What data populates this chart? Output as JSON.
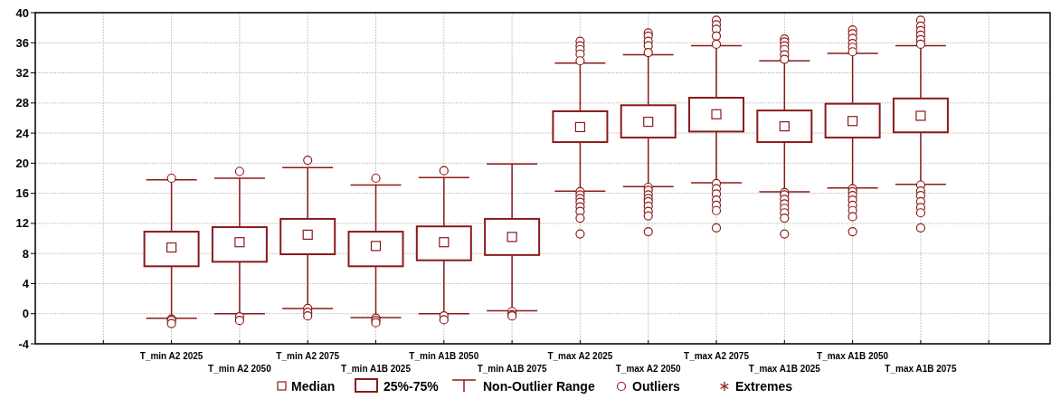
{
  "chart_data": {
    "type": "box",
    "categories": [
      null,
      "T_min  A2 2025",
      "T_min  A2 2050",
      "T_min  A2 2075",
      "T_min  A1B 2025",
      "T_min  A1B 2050",
      "T_min  A1B 2075",
      "T_max  A2 2025",
      "T_max  A2 2050",
      "T_max  A2 2075",
      "T_max  A1B 2025",
      "T_max  A1B 2050",
      "T_max  A1B 2075",
      null
    ],
    "color": "#8b1a1a",
    "boxes": [
      null,
      {
        "low": -0.6,
        "q1": 6.3,
        "median": 8.8,
        "q3": 10.9,
        "high": 17.8,
        "outliers": [
          18.0,
          -0.7,
          -0.9,
          -1.3
        ]
      },
      {
        "low": 0,
        "q1": 6.9,
        "median": 9.5,
        "q3": 11.5,
        "high": 18.0,
        "outliers": [
          18.9,
          -0.4,
          -0.9
        ]
      },
      {
        "low": 0.7,
        "q1": 7.9,
        "median": 10.5,
        "q3": 12.6,
        "high": 19.4,
        "outliers": [
          20.4,
          0.7,
          0.2,
          -0.3
        ]
      },
      {
        "low": -0.5,
        "q1": 6.3,
        "median": 9.0,
        "q3": 10.9,
        "high": 17.1,
        "outliers": [
          18.0,
          -0.6,
          -0.9,
          -1.2
        ]
      },
      {
        "low": 0,
        "q1": 7.1,
        "median": 9.5,
        "q3": 11.6,
        "high": 18.1,
        "outliers": [
          19.0,
          -0.3,
          -0.8
        ]
      },
      {
        "low": 0.4,
        "q1": 7.8,
        "median": 10.2,
        "q3": 12.6,
        "high": 19.9,
        "outliers": [
          0.3,
          -0.1,
          -0.3
        ]
      },
      {
        "low": 16.3,
        "q1": 22.8,
        "median": 24.8,
        "q3": 26.9,
        "high": 33.3,
        "outliers": [
          36.2,
          35.6,
          35.1,
          34.5,
          33.6,
          16.2,
          15.8,
          15.3,
          14.8,
          14.2,
          13.6,
          12.7,
          10.6
        ]
      },
      {
        "low": 16.9,
        "q1": 23.4,
        "median": 25.5,
        "q3": 27.7,
        "high": 34.4,
        "outliers": [
          37.3,
          36.9,
          36.2,
          35.6,
          34.7,
          16.8,
          16.4,
          15.8,
          15.3,
          14.9,
          14.3,
          13.6,
          13.0,
          10.9
        ]
      },
      {
        "low": 17.4,
        "q1": 24.2,
        "median": 26.5,
        "q3": 28.7,
        "high": 35.6,
        "outliers": [
          39.0,
          38.4,
          37.8,
          36.9,
          35.8,
          17.3,
          16.6,
          15.9,
          15.1,
          14.4,
          13.7,
          11.4
        ]
      },
      {
        "low": 16.2,
        "q1": 22.8,
        "median": 24.9,
        "q3": 27.0,
        "high": 33.6,
        "outliers": [
          36.5,
          36.1,
          35.6,
          35.1,
          34.4,
          33.8,
          16.1,
          15.8,
          15.2,
          14.6,
          14.0,
          13.4,
          12.7,
          10.6
        ]
      },
      {
        "low": 16.7,
        "q1": 23.4,
        "median": 25.6,
        "q3": 27.9,
        "high": 34.6,
        "outliers": [
          37.7,
          37.2,
          36.6,
          35.9,
          35.4,
          34.8,
          16.6,
          16.2,
          15.7,
          15.1,
          14.4,
          13.7,
          12.9,
          10.9
        ]
      },
      {
        "low": 17.2,
        "q1": 24.1,
        "median": 26.3,
        "q3": 28.6,
        "high": 35.6,
        "outliers": [
          39.0,
          38.2,
          37.6,
          37.0,
          36.4,
          35.8,
          17.1,
          16.3,
          15.7,
          14.9,
          14.1,
          13.4,
          11.4
        ]
      },
      null
    ],
    "ylim": [
      -4,
      40
    ],
    "yticks": [
      -4,
      0,
      4,
      8,
      12,
      16,
      20,
      24,
      28,
      32,
      36,
      40
    ],
    "grid": true,
    "annotations": [
      "Median",
      "25%-75%",
      "Non-Outlier Range",
      "Outliers",
      "Extremes"
    ]
  }
}
